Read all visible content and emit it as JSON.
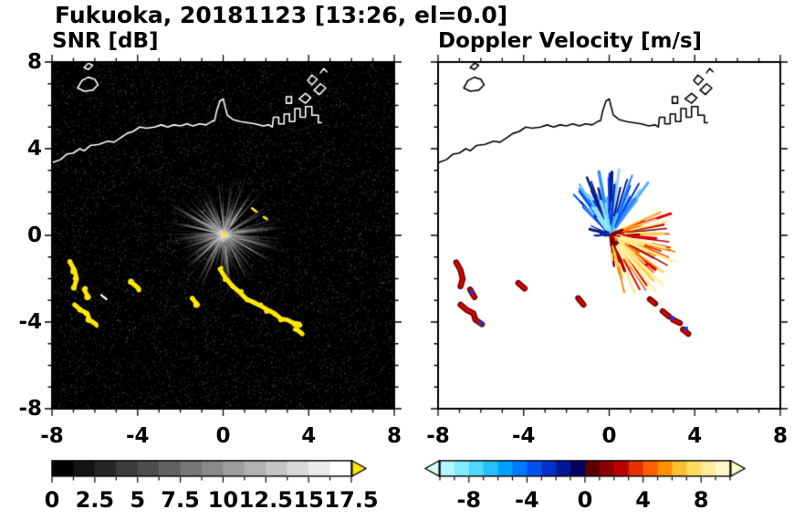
{
  "title": "Fukuoka, 20181123 [13:26, el=0.0]",
  "panels": {
    "snr": {
      "label": "SNR [dB]"
    },
    "vel": {
      "label": "Doppler Velocity [m/s]"
    }
  },
  "axes": {
    "range": [
      -8,
      8
    ],
    "x_tick_values": [
      -8,
      -4,
      0,
      4,
      8
    ],
    "x_tick_labels": [
      "-8",
      "-4",
      "0",
      "4",
      "8"
    ],
    "y_tick_values": [
      8,
      4,
      0,
      -4,
      -8
    ],
    "y_tick_labels": [
      "8",
      "4",
      "0",
      "-4",
      "-8"
    ]
  },
  "colorbars": {
    "snr": {
      "range": [
        0,
        17.5
      ],
      "steps": 14,
      "tick_values": [
        0,
        2.5,
        5,
        7.5,
        10,
        12.5,
        15,
        17.5
      ],
      "tick_labels": [
        "0",
        "2.5",
        "5",
        "7.5",
        "10",
        "12.5",
        "15",
        "17.5"
      ],
      "start_color": "#000000",
      "end_color": "#ffffff",
      "over_arrow_color": "#ffe800"
    },
    "vel": {
      "range": [
        -10,
        10
      ],
      "tick_values": [
        -8,
        -4,
        0,
        4,
        8
      ],
      "tick_labels": [
        "-8",
        "-4",
        "0",
        "4",
        "8"
      ],
      "colors": [
        "#b0f8ff",
        "#80ecff",
        "#50d8ff",
        "#28c0ff",
        "#00a0ff",
        "#0078ff",
        "#0050f0",
        "#0030c8",
        "#001896",
        "#000060",
        "#5c0000",
        "#8c0000",
        "#bc0000",
        "#e83000",
        "#ff6000",
        "#ff9000",
        "#ffc030",
        "#ffdc60",
        "#ffec98",
        "#fff8c8"
      ],
      "under_arrow_color": "#d8ffff",
      "over_arrow_color": "#ffffd0"
    }
  },
  "chart_data": [
    {
      "type": "heatmap",
      "title": "SNR [dB]",
      "units": "dB",
      "xlim": [
        -8,
        8
      ],
      "ylim": [
        -8,
        8
      ],
      "colorbar_range": [
        0,
        17.5
      ],
      "colorbar_ticks": [
        0,
        2.5,
        5,
        7.5,
        10,
        12.5,
        15,
        17.5
      ],
      "background": "#000000",
      "radar_center": [
        0.05,
        0.05
      ],
      "beam_fan": {
        "count": 260,
        "long_count": 36,
        "max_len": 2.9
      },
      "high_snr_arcs": [
        [
          [
            -7.15,
            -1.25
          ],
          [
            -6.95,
            -1.6
          ],
          [
            -6.85,
            -2.0
          ],
          [
            -6.95,
            -2.35
          ]
        ],
        [
          [
            -6.5,
            -2.5
          ],
          [
            -6.3,
            -2.85
          ]
        ],
        [
          [
            -6.95,
            -3.2
          ],
          [
            -6.65,
            -3.45
          ],
          [
            -6.35,
            -3.6
          ],
          [
            -6.25,
            -3.9
          ],
          [
            -5.95,
            -4.1
          ]
        ],
        [
          [
            -0.15,
            -1.55
          ],
          [
            0.1,
            -1.95
          ],
          [
            0.45,
            -2.35
          ],
          [
            0.8,
            -2.65
          ],
          [
            1.1,
            -2.95
          ],
          [
            1.45,
            -3.1
          ],
          [
            1.75,
            -3.25
          ],
          [
            2.1,
            -3.45
          ],
          [
            2.4,
            -3.6
          ],
          [
            2.7,
            -3.85
          ],
          [
            3.0,
            -3.9
          ],
          [
            3.3,
            -4.05
          ],
          [
            3.6,
            -4.15
          ]
        ],
        [
          [
            3.45,
            -4.35
          ],
          [
            3.7,
            -4.55
          ]
        ],
        [
          [
            -1.45,
            -2.9
          ],
          [
            -1.2,
            -3.2
          ]
        ],
        [
          [
            -4.25,
            -2.2
          ],
          [
            -3.95,
            -2.45
          ]
        ]
      ],
      "yellow_specks": [
        [
          [
            1.35,
            1.25
          ],
          [
            1.55,
            1.1
          ]
        ],
        [
          [
            1.9,
            0.85
          ],
          [
            2.05,
            0.75
          ]
        ]
      ],
      "white_dashes": [
        [
          [
            -5.7,
            -2.75
          ],
          [
            -5.45,
            -2.95
          ]
        ]
      ],
      "coastline_paths": [
        [
          [
            -8,
            3.35
          ],
          [
            -7.6,
            3.5
          ],
          [
            -7.3,
            3.75
          ],
          [
            -7.0,
            3.8
          ],
          [
            -6.7,
            4.0
          ],
          [
            -6.5,
            3.9
          ],
          [
            -6.2,
            4.15
          ],
          [
            -5.8,
            4.2
          ],
          [
            -5.4,
            4.35
          ],
          [
            -5.1,
            4.3
          ],
          [
            -4.8,
            4.5
          ],
          [
            -4.5,
            4.7
          ],
          [
            -4.2,
            4.8
          ],
          [
            -3.9,
            5.0
          ],
          [
            -3.6,
            4.95
          ],
          [
            -3.2,
            5.0
          ],
          [
            -2.9,
            5.1
          ],
          [
            -2.6,
            5.0
          ],
          [
            -2.3,
            5.1
          ],
          [
            -2.0,
            5.05
          ],
          [
            -1.7,
            5.15
          ],
          [
            -1.4,
            5.05
          ],
          [
            -1.1,
            5.15
          ],
          [
            -0.8,
            5.1
          ],
          [
            -0.55,
            5.25
          ],
          [
            -0.4,
            5.3
          ],
          [
            -0.3,
            5.75
          ],
          [
            -0.15,
            6.2
          ],
          [
            0.0,
            6.3
          ],
          [
            0.1,
            5.9
          ],
          [
            0.2,
            5.55
          ],
          [
            0.45,
            5.35
          ],
          [
            0.8,
            5.25
          ],
          [
            1.15,
            5.2
          ],
          [
            1.5,
            5.15
          ],
          [
            1.85,
            5.05
          ],
          [
            2.15,
            5.1
          ],
          [
            2.3,
            5.0
          ],
          [
            2.35,
            5.45
          ],
          [
            2.6,
            5.45
          ],
          [
            2.6,
            5.15
          ],
          [
            2.85,
            5.15
          ],
          [
            2.85,
            5.6
          ],
          [
            3.1,
            5.6
          ],
          [
            3.1,
            5.25
          ],
          [
            3.35,
            5.25
          ],
          [
            3.35,
            5.85
          ],
          [
            3.6,
            5.85
          ],
          [
            3.6,
            5.45
          ],
          [
            3.85,
            5.45
          ],
          [
            3.85,
            5.95
          ],
          [
            4.15,
            5.95
          ],
          [
            4.15,
            5.55
          ],
          [
            4.45,
            5.55
          ],
          [
            4.45,
            5.2
          ],
          [
            4.6,
            5.2
          ]
        ],
        [
          [
            -6.8,
            6.8
          ],
          [
            -6.6,
            7.15
          ],
          [
            -6.3,
            7.3
          ],
          [
            -6.0,
            7.2
          ],
          [
            -5.85,
            6.95
          ],
          [
            -6.1,
            6.7
          ],
          [
            -6.5,
            6.65
          ],
          [
            -6.8,
            6.8
          ]
        ],
        [
          [
            -6.5,
            7.75
          ],
          [
            -6.3,
            7.95
          ],
          [
            -6.1,
            7.85
          ],
          [
            -6.3,
            7.65
          ],
          [
            -6.5,
            7.75
          ]
        ],
        [
          [
            2.95,
            6.1
          ],
          [
            3.2,
            6.1
          ],
          [
            3.2,
            6.4
          ],
          [
            2.95,
            6.4
          ],
          [
            2.95,
            6.1
          ]
        ],
        [
          [
            3.55,
            6.3
          ],
          [
            3.85,
            6.55
          ],
          [
            4.1,
            6.35
          ],
          [
            3.85,
            6.1
          ],
          [
            3.55,
            6.3
          ]
        ],
        [
          [
            4.25,
            6.7
          ],
          [
            4.55,
            7.0
          ],
          [
            4.8,
            6.8
          ],
          [
            4.5,
            6.5
          ],
          [
            4.25,
            6.7
          ]
        ],
        [
          [
            3.95,
            7.15
          ],
          [
            4.15,
            7.4
          ],
          [
            4.4,
            7.2
          ],
          [
            4.15,
            6.95
          ],
          [
            3.95,
            7.15
          ]
        ],
        [
          [
            4.55,
            7.5
          ],
          [
            4.7,
            7.7
          ],
          [
            4.85,
            7.55
          ]
        ]
      ]
    },
    {
      "type": "heatmap",
      "title": "Doppler Velocity [m/s]",
      "units": "m/s",
      "xlim": [
        -8,
        8
      ],
      "ylim": [
        -8,
        8
      ],
      "colorbar_range": [
        -10,
        10
      ],
      "colorbar_ticks": [
        -8,
        -4,
        0,
        4,
        8
      ],
      "background": "#ffffff",
      "radar_center": [
        0.05,
        0.05
      ],
      "fan_groups": {
        "warm": {
          "a0": -85,
          "a1": 25,
          "n": 160,
          "len": 3.0,
          "colors": [
            "#800000",
            "#b40000",
            "#e00000",
            "#ff4600",
            "#ff8200",
            "#ffb400",
            "#ffd24a",
            "#ffe98c"
          ]
        },
        "yellow_lr": {
          "a0": -62,
          "a1": -12,
          "n": 45,
          "len": 3.3,
          "colors": [
            "#ffd24a",
            "#ffe98c",
            "#fff3b4"
          ]
        },
        "blue": {
          "a0": 50,
          "a1": 135,
          "n": 130,
          "len": 2.9,
          "colors": [
            "#001a8c",
            "#0030c8",
            "#0050ff",
            "#2a8cff",
            "#55b4ff",
            "#8cd4ff"
          ]
        },
        "cyan_top": {
          "a0": 95,
          "a1": 128,
          "n": 25,
          "len": 1.4,
          "colors": [
            "#66d9ff",
            "#99e6ff"
          ]
        },
        "navy_left": {
          "a0": 150,
          "a1": 205,
          "n": 15,
          "len": 0.9,
          "colors": [
            "#001878",
            "#002a9e"
          ]
        },
        "dark_core": {
          "a0": -90,
          "a1": 30,
          "n": 25,
          "len": 0.55,
          "colors": [
            "#6e0000",
            "#8c0000"
          ]
        }
      },
      "echo_arcs": [
        [
          [
            -7.15,
            -1.25
          ],
          [
            -6.95,
            -1.6
          ],
          [
            -6.85,
            -2.0
          ],
          [
            -6.95,
            -2.35
          ]
        ],
        [
          [
            -6.5,
            -2.5
          ],
          [
            -6.3,
            -2.85
          ]
        ],
        [
          [
            -6.95,
            -3.2
          ],
          [
            -6.65,
            -3.45
          ],
          [
            -6.35,
            -3.6
          ],
          [
            -6.25,
            -3.9
          ],
          [
            -5.95,
            -4.1
          ]
        ],
        [
          [
            -4.25,
            -2.2
          ],
          [
            -3.95,
            -2.45
          ]
        ],
        [
          [
            -1.45,
            -2.9
          ],
          [
            -1.2,
            -3.2
          ]
        ],
        [
          [
            1.9,
            -2.95
          ],
          [
            2.15,
            -3.15
          ]
        ],
        [
          [
            2.5,
            -3.5
          ],
          [
            2.8,
            -3.75
          ]
        ],
        [
          [
            3.0,
            -3.9
          ],
          [
            3.3,
            -4.05
          ]
        ],
        [
          [
            3.45,
            -4.35
          ],
          [
            3.7,
            -4.55
          ]
        ]
      ],
      "blue_flecks": [
        [
          -6.4,
          -2.6
        ],
        [
          -6.0,
          -4.05
        ],
        [
          2.95,
          -3.8
        ],
        [
          3.6,
          -4.3
        ]
      ]
    }
  ]
}
